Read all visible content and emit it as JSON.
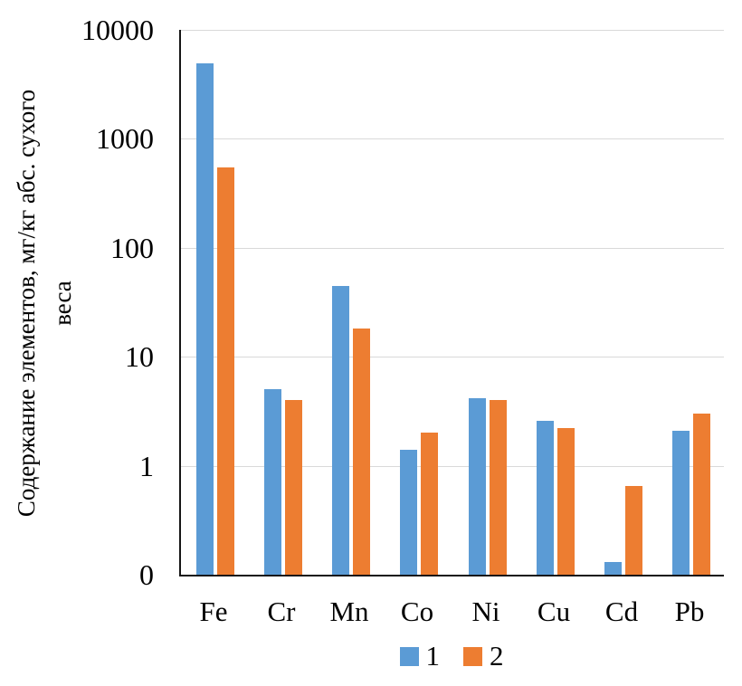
{
  "chart_data": {
    "type": "bar",
    "title": "",
    "ylabel": "Содержание элементов, мг/кг абс. сухого веса",
    "ylabel_lines": [
      "Содержание элементов, мг/кг абс. сухого",
      "веса"
    ],
    "xlabel": "",
    "categories": [
      "Fe",
      "Cr",
      "Mn",
      "Co",
      "Ni",
      "Cu",
      "Cd",
      "Pb"
    ],
    "series": [
      {
        "name": "1",
        "color": "#5B9BD5",
        "values": [
          4900,
          5,
          45,
          1.4,
          4.2,
          2.6,
          0.13,
          2.1
        ]
      },
      {
        "name": "2",
        "color": "#ED7D31",
        "values": [
          550,
          4,
          18,
          2,
          4,
          2.2,
          0.65,
          3
        ]
      }
    ],
    "y_axis": {
      "scale": "log",
      "min": 0.1,
      "max": 10000,
      "tick_labels": [
        "10000",
        "1000",
        "100",
        "10",
        "1",
        "0"
      ]
    },
    "legend_position": "bottom",
    "grid": "horizontal",
    "colors": {
      "gridline": "#D9D9D9",
      "axis": "#161616",
      "text": "#000000"
    }
  }
}
